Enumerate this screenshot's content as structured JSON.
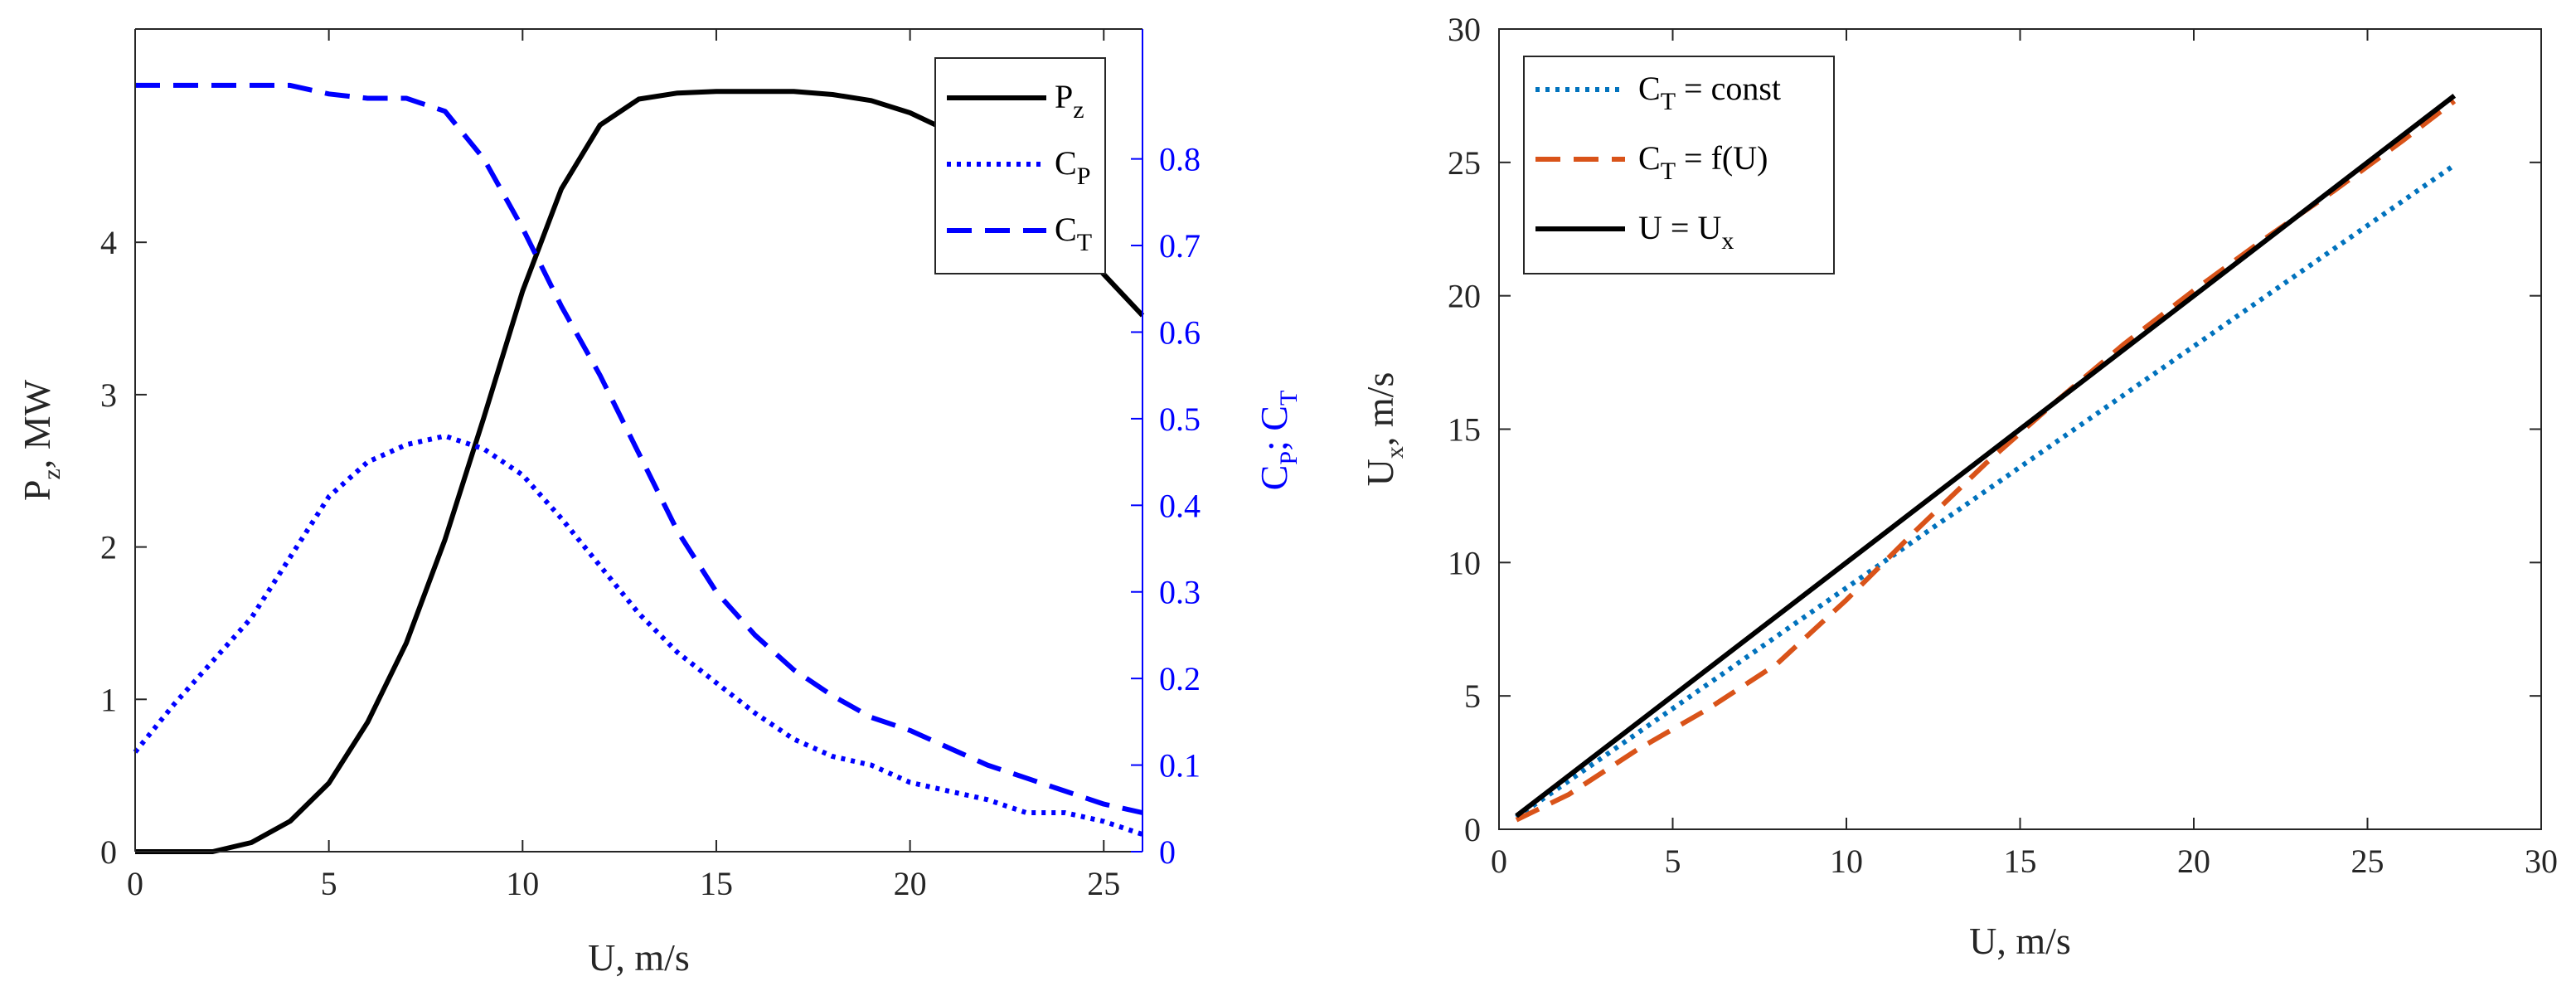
{
  "chart_data": [
    {
      "type": "line",
      "xlabel": "U, m/s",
      "ylabel_left": {
        "main": "P",
        "sub": "z",
        "rest": ", MW"
      },
      "ylabel_right": {
        "a": "C",
        "a_sub": "P",
        "sep": "; ",
        "b": "C",
        "b_sub": "T"
      },
      "xlim": [
        0,
        26
      ],
      "ylim_left": [
        0,
        5.4
      ],
      "ylim_right": [
        0,
        0.95
      ],
      "xticks": [
        0,
        5,
        10,
        15,
        20,
        25
      ],
      "yticks_left": [
        0,
        1,
        2,
        3,
        4
      ],
      "yticks_right": [
        0,
        0.1,
        0.2,
        0.3,
        0.4,
        0.5,
        0.6,
        0.7,
        0.8
      ],
      "legend": [
        {
          "main": "P",
          "sub": "z"
        },
        {
          "main": "C",
          "sub": "P"
        },
        {
          "main": "C",
          "sub": "T"
        }
      ],
      "series": [
        {
          "name": "Pz",
          "axis": "left",
          "color": "#000000",
          "style": "solid",
          "x": [
            0,
            1,
            2,
            3,
            4,
            5,
            6,
            7,
            8,
            9,
            10,
            11,
            12,
            13,
            14,
            15,
            16,
            17,
            18,
            19,
            20,
            21,
            22,
            23,
            24,
            25,
            26
          ],
          "y": [
            0,
            0,
            0,
            0.06,
            0.2,
            0.45,
            0.85,
            1.37,
            2.05,
            2.85,
            3.68,
            4.35,
            4.77,
            4.94,
            4.98,
            4.99,
            4.99,
            4.99,
            4.97,
            4.93,
            4.85,
            4.73,
            4.55,
            4.33,
            4.07,
            3.79,
            3.52
          ]
        },
        {
          "name": "CP",
          "axis": "right",
          "color": "#0000ff",
          "style": "dotted",
          "x": [
            0,
            1,
            2,
            3,
            4,
            5,
            6,
            7,
            8,
            9,
            10,
            11,
            12,
            13,
            14,
            15,
            16,
            17,
            18,
            19,
            20,
            21,
            22,
            23,
            24,
            25,
            26
          ],
          "y": [
            0.115,
            0.17,
            0.22,
            0.27,
            0.34,
            0.41,
            0.45,
            0.47,
            0.48,
            0.465,
            0.435,
            0.385,
            0.33,
            0.275,
            0.23,
            0.195,
            0.16,
            0.13,
            0.11,
            0.1,
            0.08,
            0.07,
            0.06,
            0.045,
            0.045,
            0.035,
            0.02
          ]
        },
        {
          "name": "CT",
          "axis": "right",
          "color": "#0000ff",
          "style": "dashed",
          "x": [
            0,
            1,
            2,
            3,
            4,
            5,
            6,
            7,
            8,
            9,
            10,
            11,
            12,
            13,
            14,
            15,
            16,
            17,
            18,
            19,
            20,
            21,
            22,
            23,
            24,
            25,
            26
          ],
          "y": [
            0.885,
            0.885,
            0.885,
            0.885,
            0.885,
            0.875,
            0.87,
            0.87,
            0.855,
            0.8,
            0.72,
            0.63,
            0.55,
            0.46,
            0.37,
            0.3,
            0.25,
            0.21,
            0.18,
            0.155,
            0.14,
            0.12,
            0.1,
            0.085,
            0.07,
            0.055,
            0.045
          ]
        }
      ]
    },
    {
      "type": "line",
      "xlabel": "U, m/s",
      "ylabel": {
        "main": "U",
        "sub": "x",
        "rest": ", m/s"
      },
      "xlim": [
        0,
        30
      ],
      "ylim": [
        0,
        30
      ],
      "xticks": [
        0,
        5,
        10,
        15,
        20,
        25,
        30
      ],
      "yticks": [
        0,
        5,
        10,
        15,
        20,
        25,
        30
      ],
      "legend": [
        {
          "main": "C",
          "sub": "T",
          "rest": " = const"
        },
        {
          "main": "C",
          "sub": "T",
          "rest": " = f(U)"
        },
        {
          "main": "U = U",
          "sub": "x",
          "rest": ""
        }
      ],
      "series": [
        {
          "name": "CT = const",
          "color": "#0072bd",
          "style": "dotted",
          "x": [
            0.5,
            27.5
          ],
          "y": [
            0.45,
            24.9
          ]
        },
        {
          "name": "CT = f(U)",
          "color": "#d95319",
          "style": "dashed",
          "x": [
            0.5,
            2,
            4,
            6,
            8,
            10,
            12,
            14,
            16,
            18,
            20,
            22,
            24,
            26,
            27.5
          ],
          "y": [
            0.35,
            1.3,
            3.0,
            4.5,
            6.2,
            8.6,
            11.2,
            13.7,
            16.0,
            18.2,
            20.2,
            22.1,
            23.9,
            25.8,
            27.3
          ]
        },
        {
          "name": "U = Ux",
          "color": "#000000",
          "style": "solid",
          "x": [
            0.5,
            27.5
          ],
          "y": [
            0.5,
            27.5
          ]
        }
      ]
    }
  ]
}
